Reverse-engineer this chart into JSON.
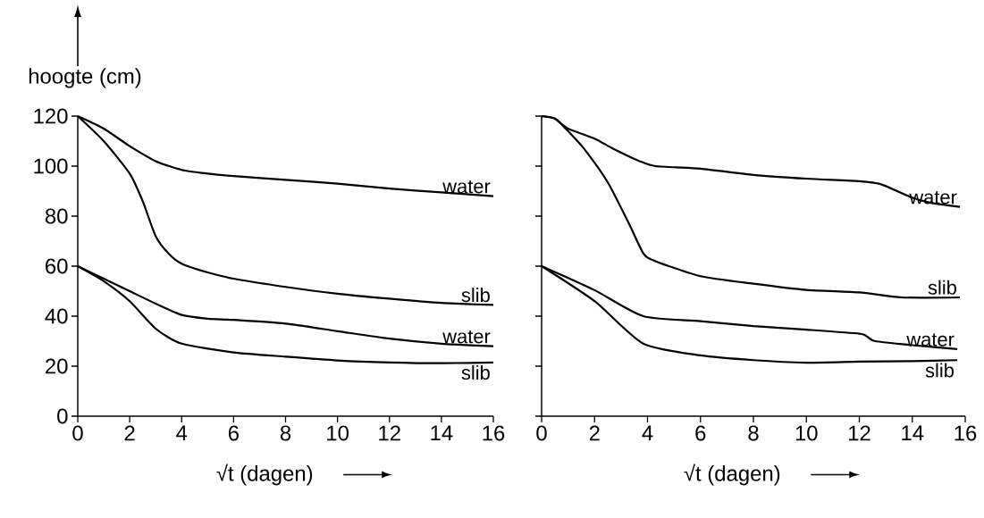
{
  "chart_data": [
    {
      "type": "line",
      "xlabel": "√t (dagen)",
      "ylabel": "hoogte (cm)",
      "xlim": [
        0,
        16
      ],
      "ylim": [
        0,
        120
      ],
      "xticks": [
        0,
        2,
        4,
        6,
        8,
        10,
        12,
        14,
        16
      ],
      "yticks": [
        0,
        20,
        40,
        60,
        80,
        100,
        120
      ],
      "marker": "none",
      "line_style": "solid",
      "series": [
        {
          "name": "water",
          "color": "#000000",
          "x": [
            0,
            1,
            2,
            3,
            4,
            5,
            6,
            8,
            10,
            12,
            14,
            16
          ],
          "values": [
            120,
            115,
            108,
            102,
            98.5,
            97,
            96,
            94.5,
            93,
            91,
            89.5,
            88
          ]
        },
        {
          "name": "slib",
          "color": "#000000",
          "x": [
            0,
            1,
            2,
            2.5,
            3,
            3.5,
            4,
            5,
            6,
            8,
            10,
            12,
            14,
            16
          ],
          "values": [
            120,
            110,
            97,
            86,
            72,
            65,
            61,
            57.5,
            55,
            51.7,
            49,
            47,
            45.3,
            44.5
          ]
        },
        {
          "name": "water",
          "color": "#000000",
          "x": [
            0,
            1,
            2,
            3,
            4,
            5,
            6,
            8,
            10,
            12,
            14,
            16
          ],
          "values": [
            60,
            55,
            50,
            45,
            40.5,
            39,
            38.5,
            37,
            34,
            31,
            29,
            28
          ]
        },
        {
          "name": "slib",
          "color": "#000000",
          "x": [
            0,
            1,
            2,
            3,
            4,
            6,
            8,
            10,
            12,
            14,
            16
          ],
          "values": [
            60,
            54,
            46,
            35,
            29,
            25.5,
            23.8,
            22.3,
            21.5,
            21.2,
            21.5
          ]
        }
      ]
    },
    {
      "type": "line",
      "xlabel": "√t (dagen)",
      "xlim": [
        0,
        16
      ],
      "ylim": [
        0,
        120
      ],
      "xticks": [
        0,
        2,
        4,
        6,
        8,
        10,
        12,
        14,
        16
      ],
      "yticks": [
        0,
        20,
        40,
        60,
        80,
        100,
        120
      ],
      "tick_labels": "x",
      "marker": "none",
      "line_style": "solid",
      "series": [
        {
          "name": "water",
          "color": "#000000",
          "x": [
            0,
            0.5,
            1,
            2,
            2.7,
            3.7,
            4.3,
            6,
            8,
            10,
            12,
            12.8,
            13.9,
            14.7,
            15.8
          ],
          "values": [
            120,
            119,
            115,
            111,
            107,
            102,
            100,
            99,
            96.5,
            95,
            94,
            92.8,
            87.8,
            85.3,
            83.7
          ]
        },
        {
          "name": "slib",
          "color": "#000000",
          "x": [
            0,
            0.5,
            1,
            1.6,
            2.5,
            3.3,
            3.85,
            4.3,
            6,
            8,
            10,
            12,
            13.6,
            15.8
          ],
          "values": [
            120,
            119,
            114,
            107,
            93.5,
            77,
            65,
            62,
            56,
            53,
            50.5,
            49.5,
            47.5,
            47.5
          ]
        },
        {
          "name": "water",
          "color": "#000000",
          "x": [
            0,
            2,
            3.84,
            6,
            8,
            10,
            12,
            12.3,
            12.6,
            14,
            15.7
          ],
          "values": [
            60,
            50.4,
            40,
            38,
            36,
            34.6,
            33,
            31.8,
            30,
            28.4,
            26.8
          ]
        },
        {
          "name": "slib",
          "color": "#000000",
          "x": [
            0,
            2,
            3.84,
            6,
            8,
            10,
            12,
            14,
            15.7
          ],
          "values": [
            60,
            46,
            29,
            24.3,
            22.4,
            21.4,
            21.8,
            22,
            22.4
          ]
        }
      ]
    }
  ]
}
